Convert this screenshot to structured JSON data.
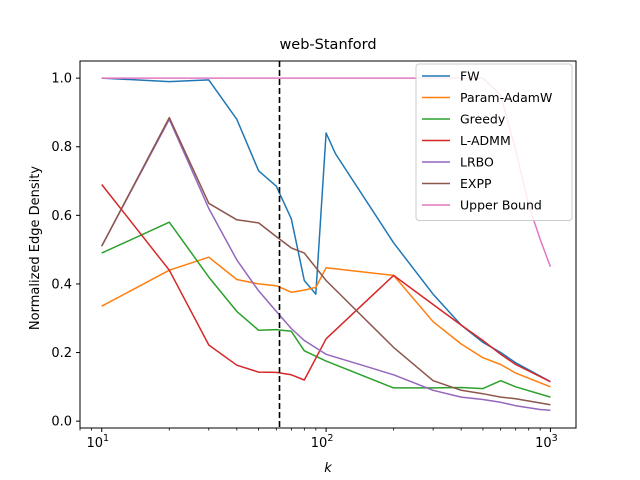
{
  "chart_data": {
    "type": "line",
    "title": "web-Stanford",
    "xlabel": "k",
    "ylabel": "Normalized Edge Density",
    "xscale": "log",
    "xlim": [
      8,
      1300
    ],
    "ylim": [
      -0.02,
      1.05
    ],
    "yticks": [
      "0.0",
      "0.2",
      "0.4",
      "0.6",
      "0.8",
      "1.0"
    ],
    "xticks": [
      {
        "base": "10",
        "exp": "1",
        "value": 10
      },
      {
        "base": "10",
        "exp": "2",
        "value": 100
      },
      {
        "base": "10",
        "exp": "3",
        "value": 1000
      }
    ],
    "vline": {
      "x": 62,
      "style": "dashed",
      "color": "#000000"
    },
    "legend_position": "top-right",
    "series": [
      {
        "name": "FW",
        "color": "#1f77b4",
        "x": [
          10,
          20,
          30,
          40,
          50,
          60,
          70,
          80,
          90,
          100,
          110,
          200,
          300,
          400,
          500,
          600,
          700,
          1000
        ],
        "y": [
          1.0,
          0.99,
          0.995,
          0.88,
          0.73,
          0.685,
          0.59,
          0.41,
          0.37,
          0.84,
          0.78,
          0.52,
          0.37,
          0.28,
          0.23,
          0.2,
          0.17,
          0.115
        ]
      },
      {
        "name": "Param-AdamW",
        "color": "#ff7f0e",
        "x": [
          10,
          20,
          30,
          40,
          50,
          60,
          70,
          80,
          90,
          100,
          200,
          300,
          400,
          500,
          600,
          700,
          1000
        ],
        "y": [
          0.335,
          0.44,
          0.478,
          0.413,
          0.4,
          0.395,
          0.376,
          0.382,
          0.39,
          0.447,
          0.425,
          0.29,
          0.225,
          0.185,
          0.165,
          0.14,
          0.1
        ]
      },
      {
        "name": "Greedy",
        "color": "#2ca02c",
        "x": [
          10,
          20,
          30,
          40,
          50,
          60,
          70,
          80,
          100,
          200,
          300,
          400,
          500,
          600,
          700,
          1000
        ],
        "y": [
          0.49,
          0.58,
          0.42,
          0.32,
          0.265,
          0.267,
          0.262,
          0.205,
          0.175,
          0.097,
          0.097,
          0.098,
          0.095,
          0.118,
          0.1,
          0.07
        ]
      },
      {
        "name": "L-ADMM",
        "color": "#d62728",
        "x": [
          10,
          20,
          30,
          40,
          50,
          60,
          70,
          80,
          100,
          200,
          300,
          400,
          500,
          600,
          700,
          1000
        ],
        "y": [
          0.69,
          0.44,
          0.222,
          0.163,
          0.143,
          0.142,
          0.135,
          0.12,
          0.24,
          0.425,
          0.34,
          0.28,
          0.235,
          0.195,
          0.165,
          0.115
        ]
      },
      {
        "name": "LRBO",
        "color": "#9467bd",
        "x": [
          10,
          20,
          30,
          40,
          50,
          60,
          70,
          80,
          100,
          200,
          300,
          400,
          500,
          600,
          700,
          900,
          1000
        ],
        "y": [
          0.51,
          0.88,
          0.62,
          0.47,
          0.38,
          0.32,
          0.27,
          0.235,
          0.195,
          0.135,
          0.09,
          0.07,
          0.063,
          0.055,
          0.045,
          0.034,
          0.032
        ]
      },
      {
        "name": "EXPP",
        "color": "#8c564b",
        "x": [
          10,
          20,
          30,
          40,
          50,
          60,
          70,
          80,
          100,
          200,
          300,
          400,
          500,
          600,
          700,
          1000
        ],
        "y": [
          0.51,
          0.885,
          0.635,
          0.587,
          0.578,
          0.538,
          0.505,
          0.49,
          0.41,
          0.215,
          0.118,
          0.09,
          0.08,
          0.07,
          0.065,
          0.048
        ]
      },
      {
        "name": "Upper Bound",
        "color": "#e377c2",
        "x": [
          10,
          20,
          30,
          40,
          50,
          60,
          70,
          80,
          90,
          100,
          200,
          300,
          400,
          500,
          600,
          700,
          800,
          900,
          1000
        ],
        "y": [
          1.0,
          1.0,
          1.0,
          1.0,
          1.0,
          1.0,
          1.0,
          1.0,
          1.0,
          1.0,
          1.0,
          1.0,
          1.0,
          1.0,
          0.95,
          0.79,
          0.63,
          0.53,
          0.45
        ]
      }
    ]
  }
}
